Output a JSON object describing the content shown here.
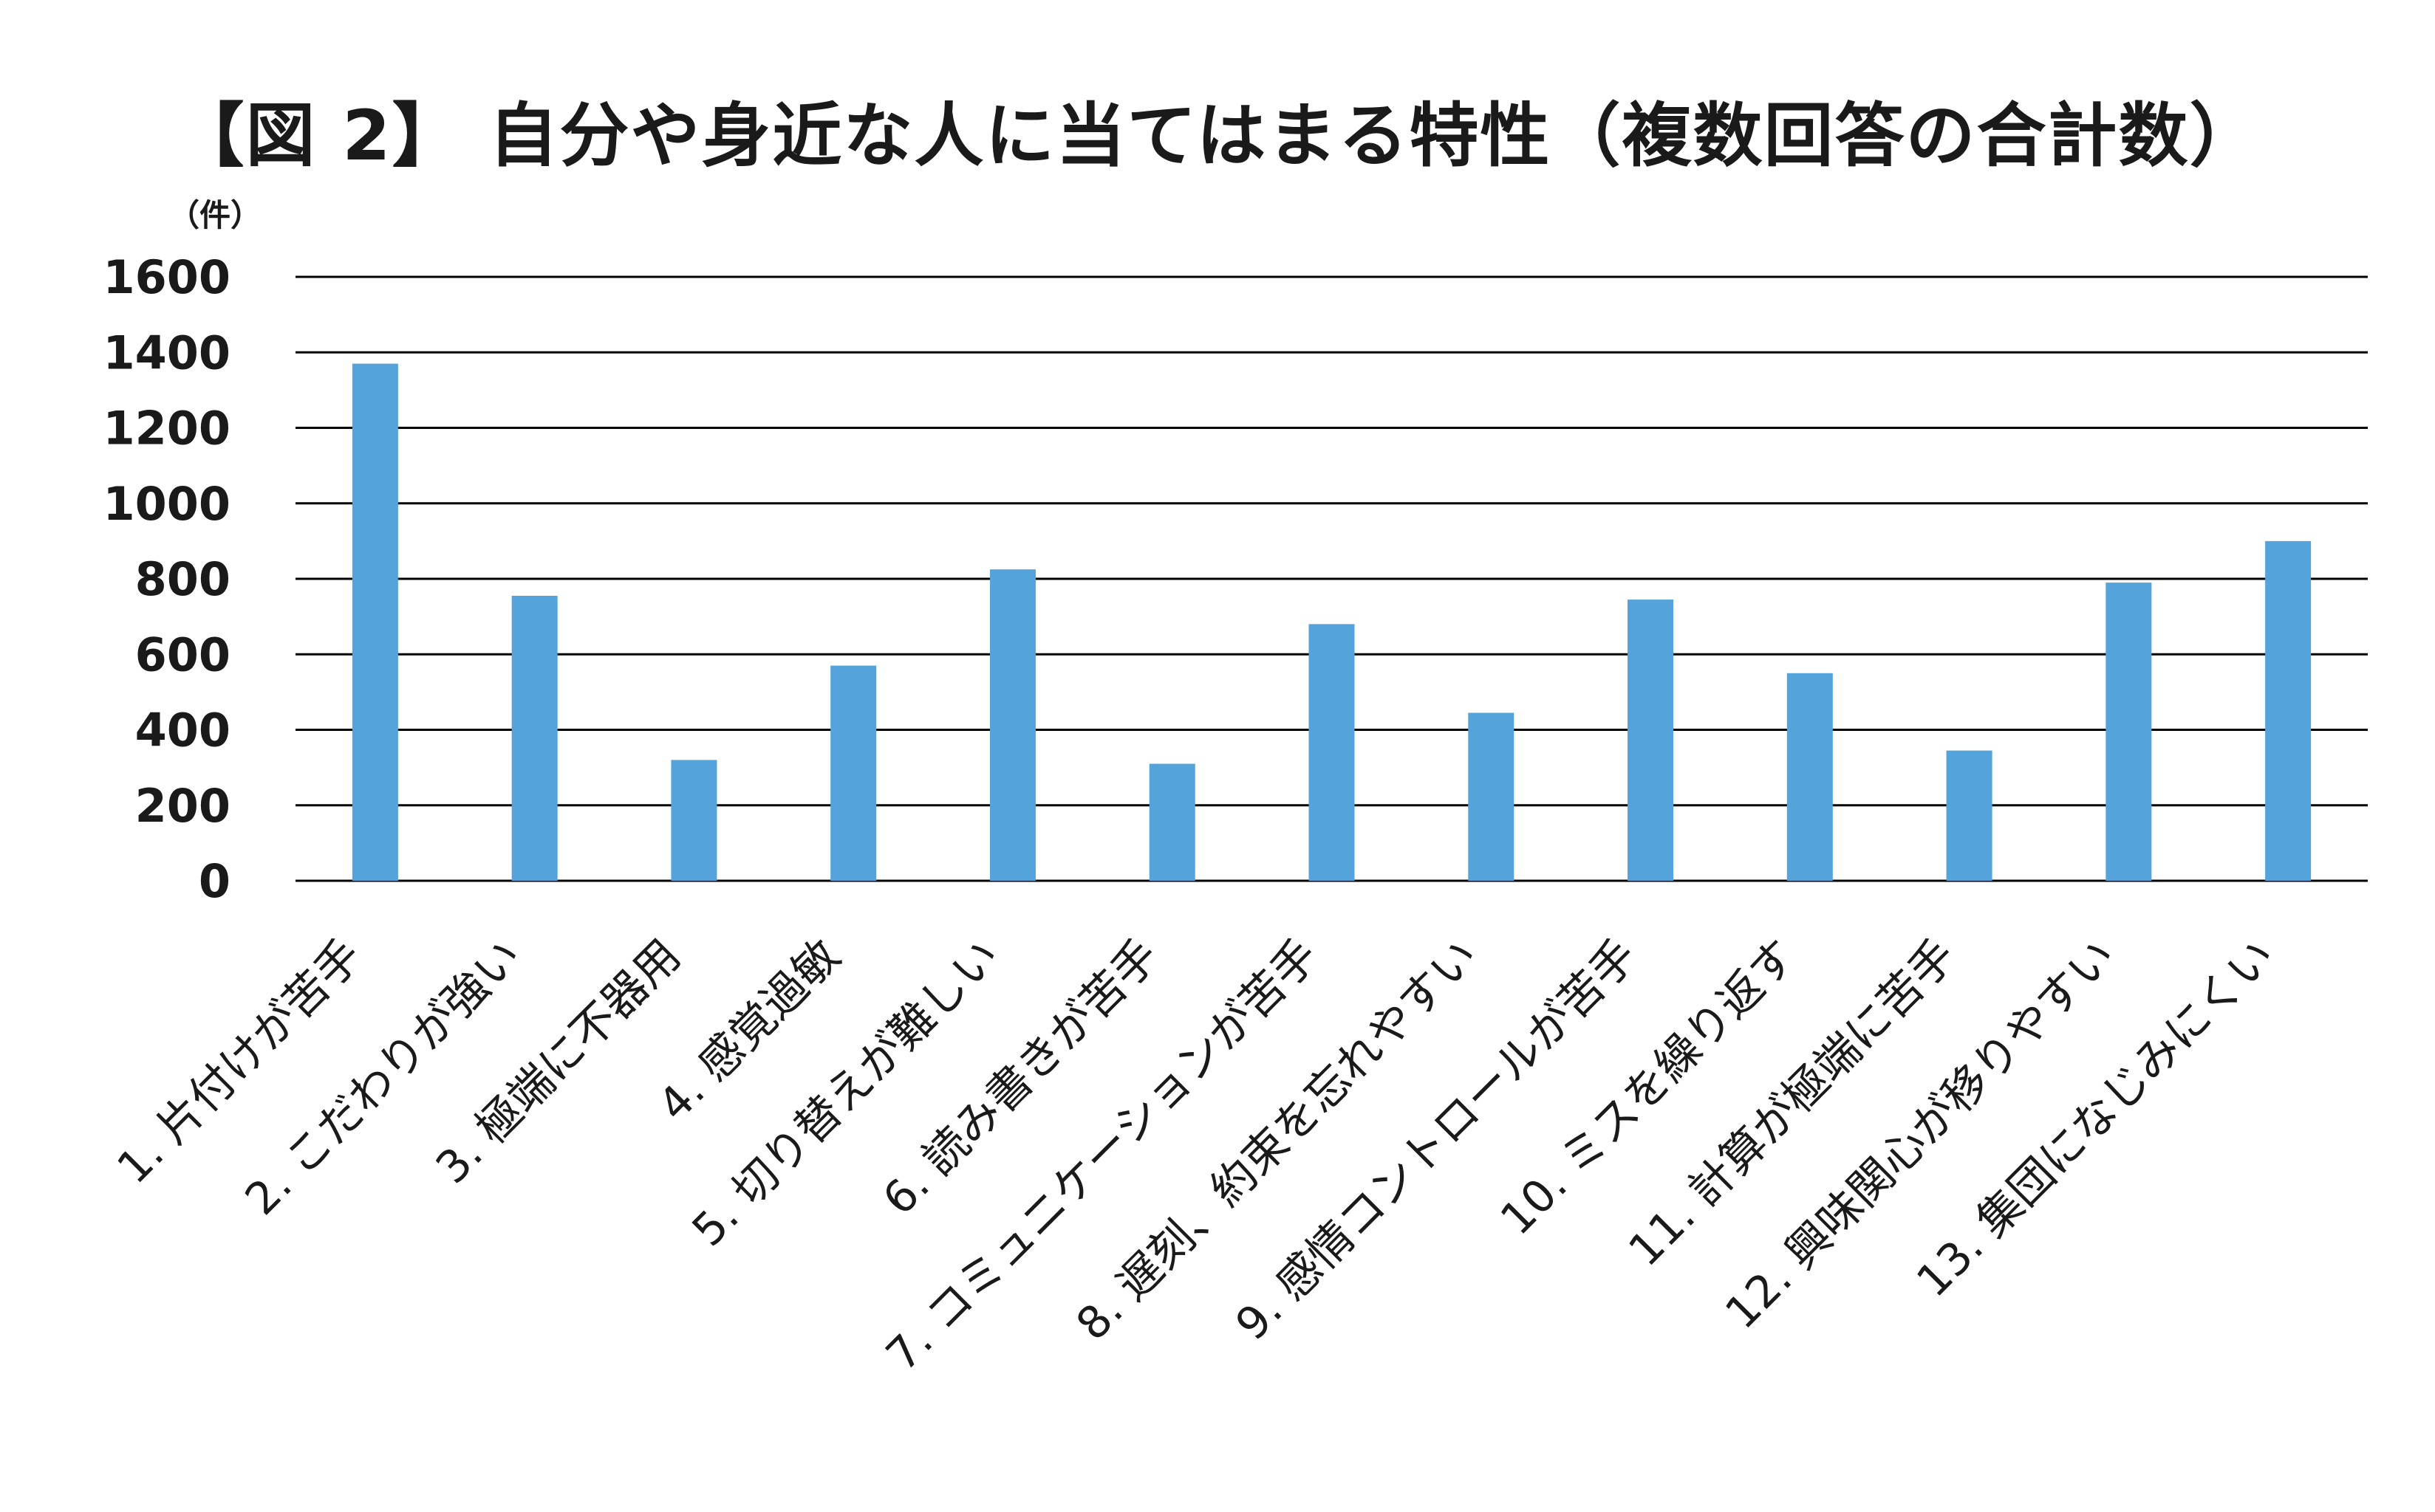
{
  "chart_data": {
    "type": "bar",
    "title": "【図 2】 自分や身近な人に当てはまる特性（複数回答の合計数）",
    "ylabel": "（件）",
    "xlabel": "",
    "ylim": [
      0,
      1600
    ],
    "yticks": [
      0,
      200,
      400,
      600,
      800,
      1000,
      1200,
      1400,
      1600
    ],
    "grid": true,
    "legend": "none",
    "bar_color": "#54a3da",
    "categories": [
      "1. 片付けが苦手",
      "2. こだわりが強い",
      "3. 極端に不器用",
      "4. 感覚過敏",
      "5. 切り替えが難しい",
      "6. 読み書きが苦手",
      "7. コミュニケーションが苦手",
      "8. 遅刻、約束を忘れやすい",
      "9. 感情コントロールが苦手",
      "10. ミスを繰り返す",
      "11. 計算が極端に苦手",
      "12. 興味関心が移りやすい",
      "13. 集団になじみにくい"
    ],
    "values": [
      1370,
      755,
      320,
      570,
      825,
      310,
      680,
      445,
      745,
      550,
      345,
      790,
      900
    ]
  }
}
